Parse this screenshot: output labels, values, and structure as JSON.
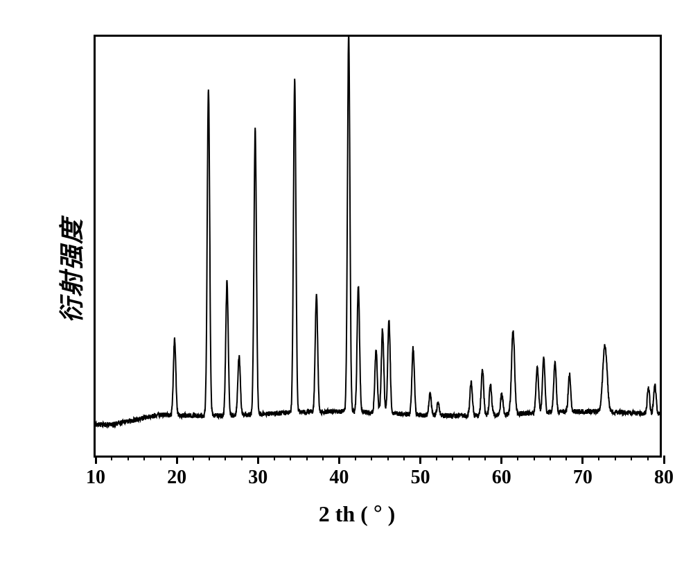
{
  "chart": {
    "type": "xrd-spectrum",
    "xlabel": "2 th (°)",
    "ylabel": "衍射强度",
    "xlim": [
      10,
      80
    ],
    "ylim": [
      0,
      100
    ],
    "x_major_ticks": [
      10,
      20,
      30,
      40,
      50,
      60,
      70,
      80
    ],
    "x_minor_step": 2,
    "background_color": "#ffffff",
    "line_color": "#000000",
    "border_color": "#000000",
    "line_width": 2,
    "border_width": 3,
    "xlabel_fontsize": 32,
    "ylabel_fontsize": 36,
    "tick_fontsize": 28,
    "baseline_y": 10,
    "baseline_noise": 1.2,
    "baseline_rise_start": 12,
    "baseline_rise_end": 18,
    "peaks": [
      {
        "x": 19.8,
        "height": 18,
        "width": 0.4
      },
      {
        "x": 24.0,
        "height": 78,
        "width": 0.4
      },
      {
        "x": 26.3,
        "height": 32,
        "width": 0.4
      },
      {
        "x": 27.8,
        "height": 14,
        "width": 0.4
      },
      {
        "x": 29.8,
        "height": 68,
        "width": 0.4
      },
      {
        "x": 34.7,
        "height": 80,
        "width": 0.4
      },
      {
        "x": 37.4,
        "height": 28,
        "width": 0.4
      },
      {
        "x": 41.4,
        "height": 90,
        "width": 0.4
      },
      {
        "x": 42.6,
        "height": 30,
        "width": 0.4
      },
      {
        "x": 44.8,
        "height": 15,
        "width": 0.4
      },
      {
        "x": 45.6,
        "height": 20,
        "width": 0.4
      },
      {
        "x": 46.4,
        "height": 22,
        "width": 0.4
      },
      {
        "x": 49.4,
        "height": 16,
        "width": 0.4
      },
      {
        "x": 51.5,
        "height": 5,
        "width": 0.4
      },
      {
        "x": 52.5,
        "height": 3,
        "width": 0.4
      },
      {
        "x": 56.6,
        "height": 8,
        "width": 0.4
      },
      {
        "x": 58.0,
        "height": 11,
        "width": 0.4
      },
      {
        "x": 59.0,
        "height": 7,
        "width": 0.4
      },
      {
        "x": 60.4,
        "height": 5,
        "width": 0.4
      },
      {
        "x": 61.8,
        "height": 20,
        "width": 0.5
      },
      {
        "x": 64.8,
        "height": 11,
        "width": 0.4
      },
      {
        "x": 65.6,
        "height": 13,
        "width": 0.4
      },
      {
        "x": 67.0,
        "height": 12,
        "width": 0.4
      },
      {
        "x": 68.8,
        "height": 9,
        "width": 0.4
      },
      {
        "x": 73.2,
        "height": 16,
        "width": 0.7
      },
      {
        "x": 78.6,
        "height": 6,
        "width": 0.4
      },
      {
        "x": 79.4,
        "height": 7,
        "width": 0.4
      }
    ]
  }
}
